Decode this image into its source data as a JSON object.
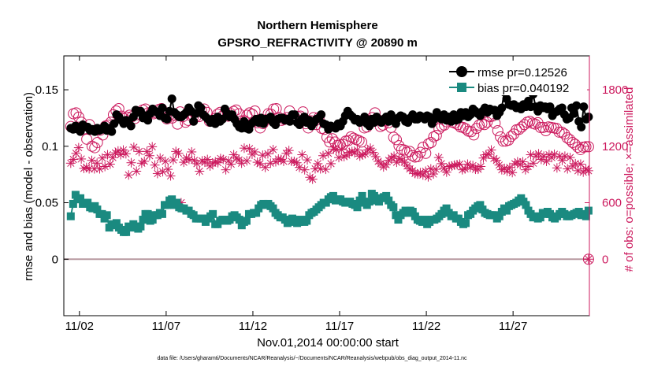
{
  "chart_data": {
    "type": "line",
    "title": "Northern Hemisphere",
    "subtitle": "GPSRO_REFRACTIVITY @ 20890 m",
    "xlabel": "Nov.01,2014 00:00:00 start",
    "ylabel_left": "rmse and bias (model - observation)",
    "ylabel_right": "# of obs: o=possible; ×=assimilated",
    "xlim": [
      0.6,
      30.9
    ],
    "ylim_left": [
      -0.05,
      0.18
    ],
    "ylim_right": [
      -600,
      2160
    ],
    "x_ticks": [
      1.5,
      6.5,
      11.5,
      16.5,
      21.5,
      26.5
    ],
    "x_tick_labels": [
      "11/02",
      "11/07",
      "11/12",
      "11/17",
      "11/22",
      "11/27"
    ],
    "y_ticks_left": [
      0,
      0.05,
      0.1,
      0.15
    ],
    "y_tick_labels_left": [
      "0",
      "0.05",
      "0.1",
      "0.15"
    ],
    "y_ticks_right": [
      0,
      600,
      1200,
      1800
    ],
    "y_tick_labels_right": [
      "0",
      "600",
      "1200",
      "1800"
    ],
    "legend_position": "top-right",
    "colors": {
      "rmse": "#000000",
      "bias": "#1a8a80",
      "obs": "#cc1a5e",
      "zero_line": "#b89aa0"
    },
    "series": [
      {
        "name": "rmse pr=0.12526",
        "axis": "left",
        "marker": "circle",
        "values": [
          0.116,
          0.115,
          0.118,
          0.115,
          0.113,
          0.119,
          0.117,
          0.117,
          0.114,
          0.115,
          0.113,
          0.116,
          0.114,
          0.115,
          0.118,
          0.114,
          0.116,
          0.113,
          0.12,
          0.128,
          0.126,
          0.123,
          0.12,
          0.123,
          0.122,
          0.118,
          0.126,
          0.132,
          0.13,
          0.131,
          0.125,
          0.127,
          0.123,
          0.129,
          0.133,
          0.131,
          0.13,
          0.127,
          0.134,
          0.125,
          0.124,
          0.131,
          0.142,
          0.13,
          0.128,
          0.126,
          0.126,
          0.128,
          0.13,
          0.134,
          0.131,
          0.122,
          0.129,
          0.136,
          0.134,
          0.128,
          0.126,
          0.124,
          0.121,
          0.124,
          0.12,
          0.126,
          0.122,
          0.124,
          0.133,
          0.129,
          0.126,
          0.128,
          0.124,
          0.12,
          0.117,
          0.116,
          0.122,
          0.116,
          0.115,
          0.12,
          0.122,
          0.124,
          0.121,
          0.125,
          0.12,
          0.124,
          0.124,
          0.126,
          0.121,
          0.119,
          0.124,
          0.125,
          0.125,
          0.123,
          0.124,
          0.122,
          0.128,
          0.128,
          0.121,
          0.119,
          0.124,
          0.126,
          0.121,
          0.123,
          0.118,
          0.121,
          0.124,
          0.125,
          0.128,
          0.12,
          0.119,
          0.115,
          0.118,
          0.117,
          0.116,
          0.12,
          0.118,
          0.122,
          0.127,
          0.131,
          0.128,
          0.126,
          0.123,
          0.124,
          0.121,
          0.122,
          0.126,
          0.12,
          0.118,
          0.124,
          0.121,
          0.126,
          0.123,
          0.121,
          0.124,
          0.126,
          0.122,
          0.128,
          0.124,
          0.12,
          0.125,
          0.127,
          0.126,
          0.122,
          0.121,
          0.125,
          0.128,
          0.124,
          0.124,
          0.127,
          0.126,
          0.124,
          0.127,
          0.126,
          0.12,
          0.124,
          0.13,
          0.126,
          0.124,
          0.128,
          0.123,
          0.126,
          0.122,
          0.128,
          0.123,
          0.124,
          0.13,
          0.127,
          0.13,
          0.126,
          0.128,
          0.133,
          0.131,
          0.129,
          0.127,
          0.131,
          0.134,
          0.13,
          0.133,
          0.132,
          0.132,
          0.127,
          0.13,
          0.134,
          0.148,
          0.142,
          0.137,
          0.136,
          0.137,
          0.134,
          0.135,
          0.133,
          0.137,
          0.135,
          0.14,
          0.135,
          0.146,
          0.135,
          0.131,
          0.136,
          0.134,
          0.135,
          0.133,
          0.135,
          0.127,
          0.13,
          0.131,
          0.133,
          0.134,
          0.128,
          0.124,
          0.125,
          0.134,
          0.129,
          0.136,
          0.122,
          0.117,
          0.135,
          0.124,
          0.126
        ]
      },
      {
        "name": "bias pr=0.040192",
        "axis": "left",
        "marker": "square",
        "values": [
          0.038,
          0.049,
          0.057,
          0.053,
          0.054,
          0.049,
          0.05,
          0.05,
          0.046,
          0.045,
          0.047,
          0.044,
          0.04,
          0.04,
          0.036,
          0.039,
          0.028,
          0.031,
          0.03,
          0.032,
          0.028,
          0.026,
          0.024,
          0.024,
          0.029,
          0.028,
          0.031,
          0.029,
          0.027,
          0.029,
          0.035,
          0.04,
          0.04,
          0.034,
          0.035,
          0.039,
          0.039,
          0.041,
          0.04,
          0.048,
          0.048,
          0.052,
          0.053,
          0.048,
          0.05,
          0.046,
          0.045,
          0.045,
          0.043,
          0.043,
          0.04,
          0.039,
          0.036,
          0.036,
          0.036,
          0.036,
          0.033,
          0.036,
          0.038,
          0.04,
          0.031,
          0.031,
          0.034,
          0.035,
          0.035,
          0.034,
          0.035,
          0.038,
          0.039,
          0.037,
          0.035,
          0.03,
          0.033,
          0.034,
          0.04,
          0.04,
          0.041,
          0.041,
          0.045,
          0.048,
          0.049,
          0.048,
          0.049,
          0.047,
          0.045,
          0.041,
          0.039,
          0.037,
          0.037,
          0.035,
          0.032,
          0.033,
          0.036,
          0.035,
          0.032,
          0.033,
          0.035,
          0.033,
          0.034,
          0.039,
          0.041,
          0.042,
          0.044,
          0.046,
          0.048,
          0.05,
          0.05,
          0.053,
          0.055,
          0.056,
          0.052,
          0.053,
          0.053,
          0.051,
          0.05,
          0.05,
          0.051,
          0.049,
          0.048,
          0.046,
          0.052,
          0.056,
          0.05,
          0.048,
          0.051,
          0.058,
          0.056,
          0.052,
          0.051,
          0.054,
          0.055,
          0.056,
          0.052,
          0.048,
          0.046,
          0.039,
          0.035,
          0.039,
          0.041,
          0.043,
          0.041,
          0.043,
          0.042,
          0.038,
          0.035,
          0.034,
          0.033,
          0.035,
          0.031,
          0.033,
          0.035,
          0.035,
          0.036,
          0.038,
          0.04,
          0.043,
          0.045,
          0.041,
          0.038,
          0.039,
          0.036,
          0.036,
          0.033,
          0.031,
          0.032,
          0.039,
          0.04,
          0.043,
          0.045,
          0.047,
          0.048,
          0.044,
          0.041,
          0.04,
          0.039,
          0.039,
          0.039,
          0.036,
          0.038,
          0.042,
          0.045,
          0.043,
          0.047,
          0.048,
          0.049,
          0.05,
          0.052,
          0.054,
          0.051,
          0.048,
          0.043,
          0.04,
          0.037,
          0.038,
          0.036,
          0.037,
          0.041,
          0.04,
          0.042,
          0.04,
          0.037,
          0.036,
          0.038,
          0.04,
          0.042,
          0.04,
          0.038,
          0.038,
          0.039,
          0.04,
          0.041,
          0.042,
          0.039,
          0.04,
          0.038,
          0.043
        ]
      },
      {
        "name": "possible obs",
        "axis": "right",
        "marker": "open-circle",
        "values": [
          1410,
          1545,
          1555,
          1510,
          1455,
          1385,
          1275,
          1430,
          1200,
          1185,
          1240,
          1370,
          1320,
          1415,
          1425,
          1455,
          1535,
          1575,
          1600,
          1520,
          1495,
          1510,
          1530,
          1515,
          1495,
          1535,
          1540,
          1585,
          1595,
          1555,
          1555,
          1545,
          1555,
          1590,
          1600,
          1560,
          1490,
          1530,
          1500,
          1530,
          1435,
          1565,
          1515,
          1455,
          1475,
          1525,
          1520,
          1520,
          1515,
          1580,
          1595,
          1560,
          1465,
          1475,
          1495,
          1540,
          1560,
          1525,
          1550,
          1520,
          1545,
          1570,
          1585,
          1545,
          1470,
          1470,
          1530,
          1555,
          1540,
          1575,
          1450,
          1395,
          1440,
          1480,
          1545,
          1540,
          1595,
          1600,
          1505,
          1475,
          1485,
          1505,
          1575,
          1505,
          1505,
          1515,
          1520,
          1565,
          1440,
          1395,
          1470,
          1505,
          1430,
          1505,
          1390,
          1380,
          1295,
          1245,
          1280,
          1245,
          1210,
          1215,
          1220,
          1255,
          1260,
          1300,
          1285,
          1270,
          1260,
          1245,
          1395,
          1405,
          1475,
          1505,
          1555,
          1485,
          1410,
          1425,
          1470,
          1450,
          1400,
          1295,
          1270,
          1205,
          1165,
          1160,
          1135,
          1145,
          1100,
          1085,
          1090,
          1135,
          1190,
          1125,
          1225,
          1240,
          1300,
          1315,
          1385,
          1415,
          1425,
          1460,
          1485,
          1455,
          1445,
          1430,
          1405,
          1400,
          1385,
          1360,
          1355,
          1320,
          1390,
          1425,
          1440,
          1430,
          1455,
          1515,
          1520,
          1445,
          1365,
          1300,
          1255,
          1255,
          1265,
          1305,
          1330,
          1375,
          1380,
          1405,
          1430,
          1455,
          1465,
          1445,
          1435,
          1450,
          1400,
          1400,
          1365,
          1405,
          1400,
          1395,
          1390,
          1350,
          1350,
          1330,
          1290,
          1270,
          1240,
          1220,
          1190,
          1165,
          1190,
          1195,
          1195
        ]
      },
      {
        "name": "assimilated obs",
        "axis": "right",
        "marker": "star",
        "values": [
          1020,
          1060,
          1125,
          1185,
          1065,
          965,
          975,
          960,
          1050,
          960,
          1020,
          960,
          1075,
          985,
          1110,
          1010,
          1080,
          1130,
          1150,
          1110,
          1160,
          1120,
          895,
          1025,
          1190,
          935,
          1145,
          1020,
          1040,
          1145,
          1100,
          1195,
          1000,
          910,
          1075,
          930,
          1040,
          955,
          885,
          1055,
          1145,
          1125,
          600,
          1030,
          1075,
          1060,
          1140,
          1050,
          1015,
          935,
          1045,
          1030,
          1060,
          990,
          1020,
          1035,
          1025,
          1070,
          1060,
          950,
          1045,
          1010,
          1110,
          1075,
          1055,
          1020,
          1180,
          1045,
          1175,
          1115,
          1140,
          1030,
          1015,
          1105,
          975,
          1120,
          1020,
          1165,
          1035,
          1065,
          1060,
          1040,
          1125,
          1155,
          1040,
          1040,
          1025,
          975,
          1110,
          950,
          1055,
          870,
          850,
          960,
          1015,
          960,
          1100,
          955,
          1125,
          1015,
          1170,
          1165,
          1080,
          1165,
          1090,
          1105,
          1135,
          1145,
          1130,
          1160,
          1095,
          1110,
          1120,
          1160,
          1180,
          1135,
          1090,
          1040,
          1015,
          980,
          1005,
          1050,
          1075,
          1095,
          1030,
          1070,
          1055,
          1030,
          990,
          960,
          940,
          910,
          905,
          920,
          895,
          935,
          875,
          960,
          905,
          955,
          1080,
          1015,
          965,
          925,
          985,
          990,
          1000,
          1005,
          1010,
          950,
          960,
          1010,
          975,
          995,
          955,
          955,
          985,
          1075,
          1110,
          1115,
          1160,
          1070,
          1050,
          1000,
          950,
          965,
          935,
          975,
          920,
          1015,
          1035,
          1005,
          1035,
          950,
          985,
          1110,
          1020,
          1095,
          1120,
          1060,
          1095,
          1040,
          1110,
          1080,
          1115,
          970,
          1095,
          1050,
          1095,
          960,
          1080,
          990,
          1015,
          940,
          1010,
          925,
          960,
          940
        ]
      }
    ],
    "right_axis_marker_at_end": {
      "x": 30.85,
      "value": 0
    },
    "footnote": "data file: /Users/gharamti/Documents/NCAR/Reanalysis/~/Documents/NCAR/Reanalysis/webpub/obs_diag_output_2014-11.nc"
  }
}
